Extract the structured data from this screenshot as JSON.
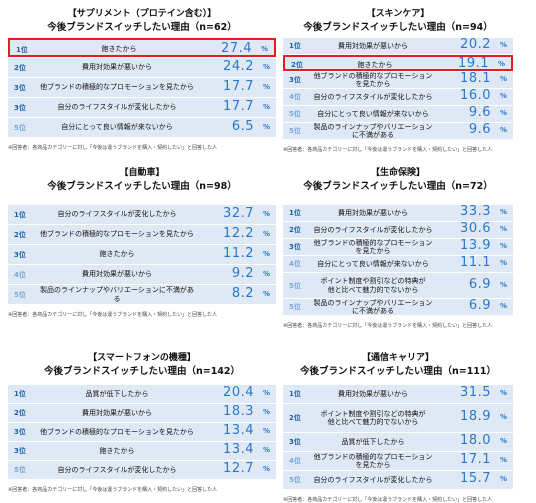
{
  "panels": [
    {
      "title": "【サプリメント（プロテイン含む）】",
      "subtitle": "今後ブランドスイッチしたい理由（n=62）",
      "unit": "%",
      "highlight": 0,
      "rows": [
        [
          "1位",
          "飽きたから",
          "27.4"
        ],
        [
          "2位",
          "費用対効果が悪いから",
          "24.2"
        ],
        [
          "3位",
          "他ブランドの積極的なプロモーションを見たから",
          "17.7"
        ],
        [
          "3位",
          "自分のライフスタイルが変化したから",
          "17.7"
        ],
        [
          "5位",
          "自分にとって良い情報が来ないから",
          "6.5"
        ]
      ],
      "footnote": "※回答者：各商品カテゴリーに対し「今後は違うブランドを購入・契約したい」と回答した人"
    },
    {
      "title": "【スキンケア】",
      "subtitle": "今後ブランドスイッチしたい理由（n=94）",
      "unit": "%",
      "highlight": 1,
      "rows": [
        [
          "1位",
          "費用対効果が悪いから",
          "20.2"
        ],
        [
          "2位",
          "飽きたから",
          "19.1"
        ],
        [
          "3位",
          "他ブランドの積極的なプロモーションを見たから",
          "18.1"
        ],
        [
          "4位",
          "自分のライフスタイルが変化したから",
          "16.0"
        ],
        [
          "5位",
          "自分にとって良い情報が来ないから",
          "9.6"
        ],
        [
          "5位",
          "製品のラインナップやバリエーションに不満がある",
          "9.6"
        ]
      ],
      "footnote": "※回答者：各商品カテゴリーに対し「今後は違うブランドを購入・契約したい」と回答した人"
    },
    {
      "title": "【自動車】",
      "subtitle": "今後ブランドスイッチしたい理由（n=98）",
      "unit": "%",
      "rows": [
        [
          "1位",
          "自分のライフスタイルが変化したから",
          "32.7"
        ],
        [
          "2位",
          "他ブランドの積極的なプロモーションを見たから",
          "12.2"
        ],
        [
          "3位",
          "飽きたから",
          "11.2"
        ],
        [
          "4位",
          "費用対効果が悪いから",
          "9.2"
        ],
        [
          "5位",
          "製品のラインナップやバリエーションに不満がある",
          "8.2"
        ]
      ],
      "footnote": "※回答者：各商品カテゴリーに対し「今後は違うブランドを購入・契約したい」と回答した人"
    },
    {
      "title": "【生命保険】",
      "subtitle": "今後ブランドスイッチしたい理由（n=72）",
      "unit": "%",
      "rows": [
        [
          "1位",
          "費用対効果が悪いから",
          "33.3"
        ],
        [
          "2位",
          "自分のライフスタイルが変化したから",
          "30.6"
        ],
        [
          "3位",
          "他ブランドの積極的なプロモーションを見たから",
          "13.9"
        ],
        [
          "4位",
          "自分にとって良い情報が来ないから",
          "11.1"
        ],
        [
          "5位",
          "ポイント制度や割引などの特典が\n他と比べて魅力的でないから",
          "6.9"
        ],
        [
          "5位",
          "製品のラインナップやバリエーションに不満がある",
          "6.9"
        ]
      ],
      "footnote": "※回答者：各商品カテゴリーに対し「今後は違うブランドを購入・契約したい」と回答した人"
    },
    {
      "title": "【スマートフォンの機種】",
      "subtitle": "今後ブランドスイッチしたい理由（n=142）",
      "unit": "%",
      "rows": [
        [
          "1位",
          "品質が低下したから",
          "20.4"
        ],
        [
          "2位",
          "費用対効果が悪いから",
          "18.3"
        ],
        [
          "3位",
          "他ブランドの積極的なプロモーションを見たから",
          "13.4"
        ],
        [
          "3位",
          "飽きたから",
          "13.4"
        ],
        [
          "5位",
          "自分のライフスタイルが変化したから",
          "12.7"
        ]
      ],
      "footnote": "※回答者：各商品カテゴリーに対し「今後は違うブランドを購入・契約したい」と回答した人"
    },
    {
      "title": "【通信キャリア】",
      "subtitle": "今後ブランドスイッチしたい理由（n=111）",
      "unit": "%",
      "rows": [
        [
          "1位",
          "費用対効果が悪いから",
          "31.5"
        ],
        [
          "2位",
          "ポイント制度や割引などの特典が\n他と比べて魅力的でないから",
          "18.9"
        ],
        [
          "3位",
          "品質が低下したから",
          "18.0"
        ],
        [
          "4位",
          "他ブランドの積極的なプロモーションを見たから",
          "17.1"
        ],
        [
          "5位",
          "自分のライフスタイルが変化したから",
          "15.7"
        ]
      ],
      "footnote": "※回答者：各商品カテゴリーに対し「今後は違うブランドを購入・契約したい」と回答した人"
    }
  ]
}
